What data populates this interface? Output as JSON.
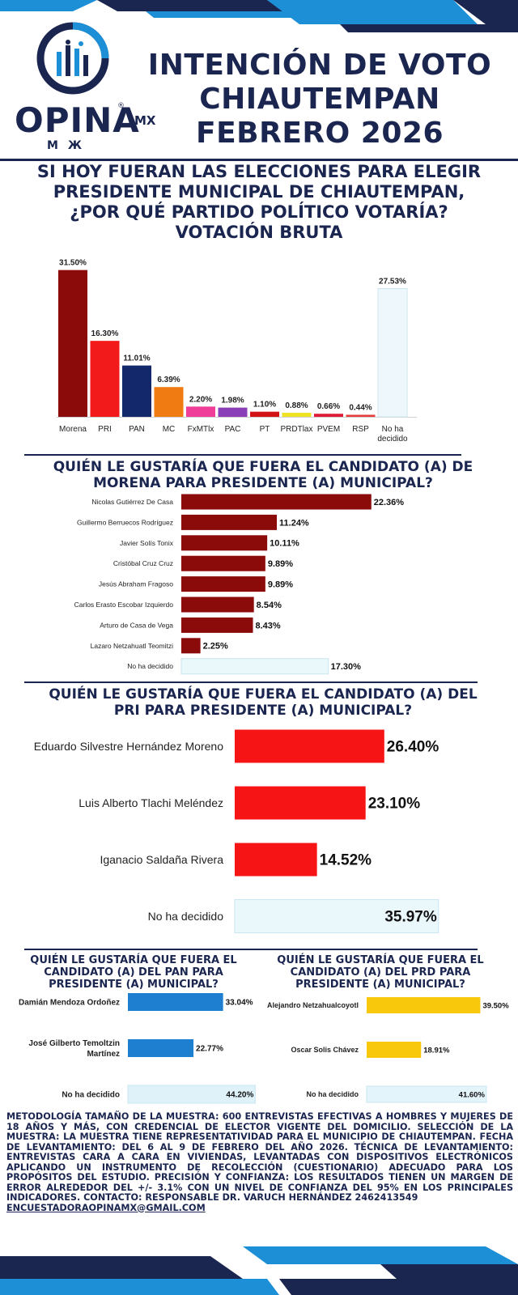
{
  "header": {
    "brand": "OPINA",
    "brand_suffix": "MX",
    "brand_reg": "®",
    "brand_sub": "MЖ",
    "title_lines": [
      "INTENCIÓN DE VOTO",
      "CHIAUTEMPAN",
      "FEBRERO 2026"
    ]
  },
  "colors": {
    "navy": "#1a2550",
    "blue": "#1d8fd6"
  },
  "chart_data": [
    {
      "type": "bar",
      "title": "SI HOY FUERAN LAS ELECCIONES PARA ELEGIR PRESIDENTE MUNICIPAL DE  CHIAUTEMPAN, ¿POR QUÉ PARTIDO POLÍTICO VOTARÍA? VOTACIÓN BRUTA",
      "title_lines": [
        "SI HOY FUERAN LAS ELECCIONES PARA ELEGIR",
        "PRESIDENTE MUNICIPAL DE  CHIAUTEMPAN,",
        "¿POR QUÉ PARTIDO POLÍTICO VOTARÍA?",
        "VOTACIÓN BRUTA"
      ],
      "categories": [
        "Morena",
        "PRI",
        "PAN",
        "MC",
        "FxMTlx",
        "PAC",
        "PT",
        "PRDTlax",
        "PVEM",
        "RSP",
        "No ha decidido"
      ],
      "values": [
        31.5,
        16.3,
        11.01,
        6.39,
        2.2,
        1.98,
        1.1,
        0.88,
        0.66,
        0.44,
        27.53
      ],
      "labels": [
        "31.50%",
        "16.30%",
        "11.01%",
        "6.39%",
        "2.20%",
        "1.98%",
        "1.10%",
        "0.88%",
        "0.66%",
        "0.44%",
        "27.53%"
      ],
      "colors": [
        "#8b0a0a",
        "#f21a1a",
        "#13276b",
        "#ef7b12",
        "#ef3d9a",
        "#8a3fb8",
        "#d21414",
        "#ede224",
        "#e01b3a",
        "#e53b3b",
        "#eef8fc"
      ],
      "ylim": [
        0,
        33
      ]
    },
    {
      "type": "bar",
      "orientation": "horizontal",
      "title": "QUIÉN LE GUSTARÍA QUE FUERA EL CANDIDATO (A) DE MORENA PARA PRESIDENTE (A) MUNICIPAL?",
      "title_lines": [
        "QUIÉN LE GUSTARÍA QUE FUERA EL CANDIDATO (A) DE",
        "MORENA PARA PRESIDENTE (A) MUNICIPAL?"
      ],
      "categories": [
        "Nicolas Gutiérrez De Casa",
        "Guillermo Berruecos Rodríguez",
        "Javier Solís Tonix",
        "Cristóbal Cruz Cruz",
        "Jesús Abraham Fragoso",
        "Carlos Erasto Escobar Izquierdo",
        "Arturo de Casa de Vega",
        "Lazaro Netzahuatl Teomitzi",
        "No ha decidido"
      ],
      "values": [
        22.36,
        11.24,
        10.11,
        9.89,
        9.89,
        8.54,
        8.43,
        2.25,
        17.3
      ],
      "labels": [
        "22.36%",
        "11.24%",
        "10.11%",
        "9.89%",
        "9.89%",
        "8.54%",
        "8.43%",
        "2.25%",
        "17.30%"
      ],
      "colors": [
        "#8b0a0a",
        "#8b0a0a",
        "#8b0a0a",
        "#8b0a0a",
        "#8b0a0a",
        "#8b0a0a",
        "#8b0a0a",
        "#8b0a0a",
        "#eaf7fb"
      ],
      "xlim": [
        0,
        24
      ]
    },
    {
      "type": "bar",
      "orientation": "horizontal",
      "title": "QUIÉN LE GUSTARÍA QUE FUERA EL CANDIDATO (A) DEL PRI PARA PRESIDENTE (A) MUNICIPAL?",
      "title_lines": [
        "QUIÉN LE GUSTARÍA QUE FUERA EL CANDIDATO (A) DEL",
        "PRI PARA PRESIDENTE (A) MUNICIPAL?"
      ],
      "categories": [
        "Eduardo Silvestre Hernández Moreno",
        "Luis Alberto Tlachi Meléndez",
        "Iganacio Saldaña Rivera",
        "No ha decidido"
      ],
      "values": [
        26.4,
        23.1,
        14.52,
        35.97
      ],
      "labels": [
        "26.40%",
        "23.10%",
        "14.52%",
        "35.97%"
      ],
      "colors": [
        "#f71414",
        "#f71414",
        "#f71414",
        "#eaf7fb"
      ],
      "xlim": [
        0,
        40
      ]
    },
    {
      "type": "bar",
      "orientation": "horizontal",
      "title": "QUIÉN LE GUSTARÍA QUE FUERA EL CANDIDATO (A) DEL PAN PARA PRESIDENTE (A) MUNICIPAL?",
      "title_lines": [
        "QUIÉN LE GUSTARÍA QUE FUERA EL",
        "CANDIDATO (A) DEL PAN PARA",
        "PRESIDENTE (A) MUNICIPAL?"
      ],
      "categories": [
        "Damián Mendoza Ordoñez",
        "José Gilberto Temoltzin Martínez",
        "No ha decidido"
      ],
      "category_lines": [
        [
          "Damián Mendoza Ordoñez"
        ],
        [
          "José Gilberto Temoltzin",
          "Martínez"
        ],
        [
          "No ha decidido"
        ]
      ],
      "values": [
        33.04,
        22.77,
        44.2
      ],
      "labels": [
        "33.04%",
        "22.77%",
        "44.20%"
      ],
      "colors": [
        "#1e7fd0",
        "#1e7fd0",
        "#dff2fa"
      ],
      "xlim": [
        0,
        50
      ]
    },
    {
      "type": "bar",
      "orientation": "horizontal",
      "title": "QUIÉN LE GUSTARÍA QUE FUERA EL CANDIDATO (A) DEL PRD PARA PRESIDENTE (A) MUNICIPAL?",
      "title_lines": [
        "QUIÉN LE GUSTARÍA QUE FUERA EL",
        "CANDIDATO (A) DEL PRD PARA",
        "PRESIDENTE (A) MUNICIPAL?"
      ],
      "categories": [
        "Alejandro Netzahualcoyotl",
        "Oscar Solis Chávez",
        "No ha decidido"
      ],
      "values": [
        39.5,
        18.91,
        41.6
      ],
      "labels": [
        "39.50%",
        "18.91%",
        "41.60%"
      ],
      "colors": [
        "#f8c80c",
        "#f8c80c",
        "#e4f4fb"
      ],
      "xlim": [
        0,
        45
      ]
    }
  ],
  "methodology": {
    "text": "METODOLOGÍA TAMAÑO DE LA MUESTRA: 600 ENTREVISTAS EFECTIVAS A HOMBRES Y MUJERES DE 18 AÑOS Y MÁS, CON CREDENCIAL DE ELECTOR VIGENTE DEL DOMICILIO. SELECCIÓN DE LA MUESTRA: LA MUESTRA TIENE REPRESENTATIVIDAD PARA EL MUNICIPIO DE CHIAUTEMPAN. FECHA DE LEVANTAMIENTO: DEL 6 AL 9 DE FEBRERO DEL AÑO 2026. TÉCNICA DE LEVANTAMIENTO: ENTREVISTAS CARA A CARA EN VIVIENDAS, LEVANTADAS CON DISPOSITIVOS ELECTRÓNICOS APLICANDO UN INSTRUMENTO DE RECOLECCIÓN (CUESTIONARIO) ADECUADO PARA LOS PROPÓSITOS DEL ESTUDIO. PRECISIÓN Y CONFIANZA: LOS RESULTADOS TIENEN UN MARGEN DE ERROR ALREDEDOR DEL +/- 3.1% CON UN NIVEL DE CONFIANZA DEL 95% EN LOS PRINCIPALES INDICADORES. CONTACTO: RESPONSABLE DR. VARUCH HERNÁNDEZ   2462413549",
    "email": "ENCUESTADORAOPINAMX@GMAIL.COM"
  }
}
